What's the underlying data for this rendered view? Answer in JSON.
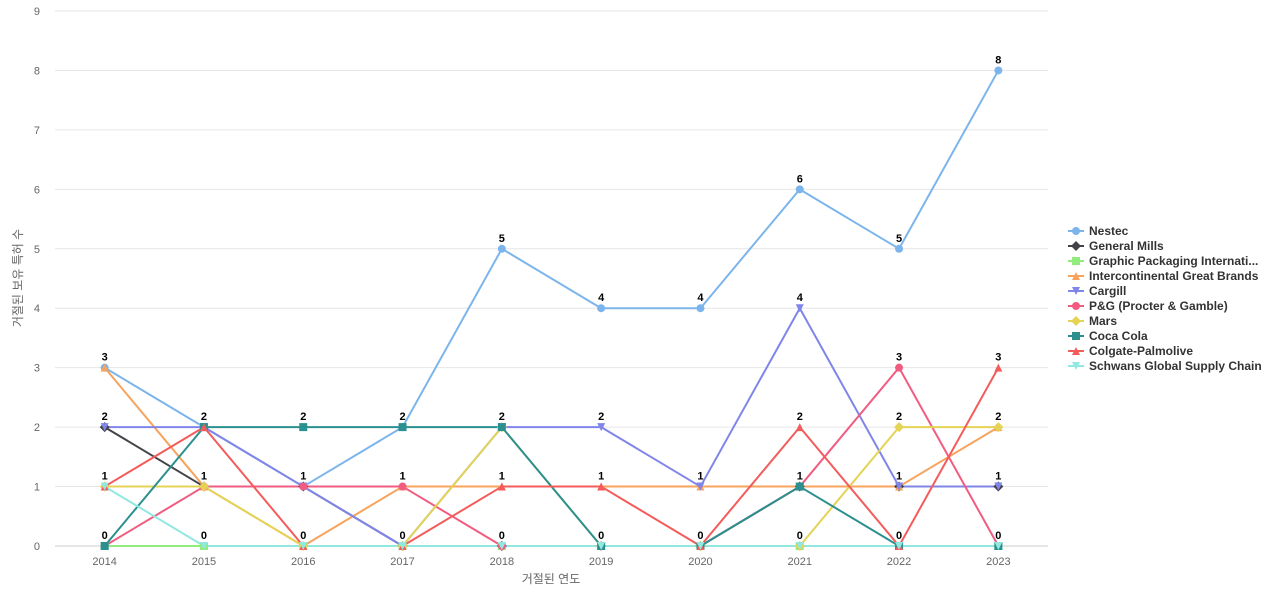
{
  "chart_data": {
    "type": "line",
    "xlabel": "거절된 연도",
    "ylabel": "거절된 보유 특허 수",
    "ylim": [
      0,
      9
    ],
    "yticks": [
      0,
      1,
      2,
      3,
      4,
      5,
      6,
      7,
      8,
      9
    ],
    "grid": true,
    "legend_position": "right",
    "categories": [
      "2014",
      "2015",
      "2016",
      "2017",
      "2018",
      "2019",
      "2020",
      "2021",
      "2022",
      "2023"
    ],
    "series": [
      {
        "name": "Nestec",
        "color": "#7cb5ec",
        "marker": "circle",
        "values": [
          3,
          2,
          1,
          2,
          5,
          4,
          4,
          6,
          5,
          8
        ]
      },
      {
        "name": "General Mills",
        "color": "#434348",
        "marker": "diamond",
        "values": [
          2,
          1,
          1,
          0,
          0,
          0,
          0,
          1,
          1,
          1
        ]
      },
      {
        "name": "Graphic Packaging Internati...",
        "color": "#90ed7d",
        "marker": "square",
        "values": [
          0,
          0,
          0,
          0,
          0,
          0,
          0,
          0,
          0,
          0
        ]
      },
      {
        "name": "Intercontinental Great Brands",
        "color": "#f7a35c",
        "marker": "triangle",
        "values": [
          3,
          1,
          0,
          1,
          1,
          1,
          1,
          1,
          1,
          2
        ]
      },
      {
        "name": "Cargill",
        "color": "#8085e9",
        "marker": "triangle-down",
        "values": [
          2,
          2,
          1,
          0,
          2,
          2,
          1,
          4,
          1,
          1
        ]
      },
      {
        "name": "P&G (Procter & Gamble)",
        "color": "#f15c80",
        "marker": "circle",
        "values": [
          0,
          1,
          1,
          1,
          0,
          0,
          0,
          1,
          3,
          0
        ]
      },
      {
        "name": "Mars",
        "color": "#e4d354",
        "marker": "diamond",
        "values": [
          1,
          1,
          0,
          0,
          2,
          0,
          0,
          0,
          2,
          2
        ]
      },
      {
        "name": "Coca Cola",
        "color": "#2b908f",
        "marker": "square",
        "values": [
          0,
          2,
          2,
          2,
          2,
          0,
          0,
          1,
          0,
          0
        ]
      },
      {
        "name": "Colgate-Palmolive",
        "color": "#f45b5b",
        "marker": "triangle",
        "values": [
          1,
          2,
          0,
          0,
          1,
          1,
          0,
          2,
          0,
          3
        ]
      },
      {
        "name": "Schwans Global Supply Chain",
        "color": "#91e8e1",
        "marker": "triangle-down",
        "values": [
          1,
          0,
          0,
          0,
          0,
          0,
          0,
          0,
          0,
          0
        ]
      }
    ],
    "data_labels": [
      {
        "x": "2014",
        "value": 3
      },
      {
        "x": "2014",
        "value": 2
      },
      {
        "x": "2014",
        "value": 1
      },
      {
        "x": "2014",
        "value": 0
      },
      {
        "x": "2015",
        "value": 2
      },
      {
        "x": "2015",
        "value": 1
      },
      {
        "x": "2015",
        "value": 0
      },
      {
        "x": "2016",
        "value": 2
      },
      {
        "x": "2016",
        "value": 1
      },
      {
        "x": "2016",
        "value": 0
      },
      {
        "x": "2017",
        "value": 2
      },
      {
        "x": "2017",
        "value": 1
      },
      {
        "x": "2017",
        "value": 0
      },
      {
        "x": "2018",
        "value": 5
      },
      {
        "x": "2018",
        "value": 2
      },
      {
        "x": "2018",
        "value": 1
      },
      {
        "x": "2018",
        "value": 0
      },
      {
        "x": "2019",
        "value": 4
      },
      {
        "x": "2019",
        "value": 2
      },
      {
        "x": "2019",
        "value": 1
      },
      {
        "x": "2019",
        "value": 0
      },
      {
        "x": "2020",
        "value": 4
      },
      {
        "x": "2020",
        "value": 1
      },
      {
        "x": "2020",
        "value": 0
      },
      {
        "x": "2021",
        "value": 6
      },
      {
        "x": "2021",
        "value": 4
      },
      {
        "x": "2021",
        "value": 2
      },
      {
        "x": "2021",
        "value": 1
      },
      {
        "x": "2021",
        "value": 0
      },
      {
        "x": "2022",
        "value": 5
      },
      {
        "x": "2022",
        "value": 3
      },
      {
        "x": "2022",
        "value": 2
      },
      {
        "x": "2022",
        "value": 1
      },
      {
        "x": "2022",
        "value": 0
      },
      {
        "x": "2023",
        "value": 8
      },
      {
        "x": "2023",
        "value": 3
      },
      {
        "x": "2023",
        "value": 2
      },
      {
        "x": "2023",
        "value": 1
      },
      {
        "x": "2023",
        "value": 0
      }
    ]
  }
}
